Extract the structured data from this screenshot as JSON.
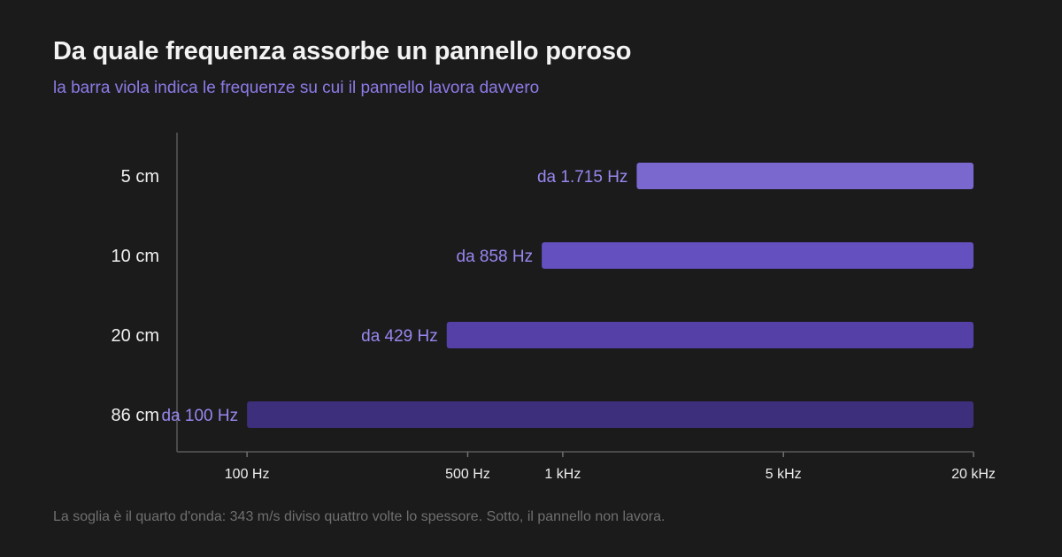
{
  "title": "Da quale frequenza assorbe un pannello poroso",
  "subtitle": "la barra viola indica le frequenze su cui il pannello lavora davvero",
  "footnote": "La soglia è il quarto d'onda: 343 m/s diviso quattro volte lo spessore. Sotto, il pannello non lavora.",
  "chart_data": {
    "type": "bar",
    "orientation": "horizontal",
    "x_scale": "log",
    "xlim": [
      60,
      20000
    ],
    "grid": false,
    "categories": [
      "5 cm",
      "10 cm",
      "20 cm",
      "86 cm"
    ],
    "ranges": [
      {
        "category": "5 cm",
        "start": 1715,
        "end": 20000,
        "label": "da 1.715 Hz",
        "color": "#7b68cf"
      },
      {
        "category": "10 cm",
        "start": 858,
        "end": 20000,
        "label": "da 858 Hz",
        "color": "#6550c0"
      },
      {
        "category": "20 cm",
        "start": 429,
        "end": 20000,
        "label": "da 429 Hz",
        "color": "#5540a8"
      },
      {
        "category": "86 cm",
        "start": 100,
        "end": 20000,
        "label": "da 100 Hz",
        "color": "#3e2f7d"
      }
    ],
    "x_ticks": [
      {
        "value": 100,
        "label": "100 Hz"
      },
      {
        "value": 500,
        "label": "500 Hz"
      },
      {
        "value": 1000,
        "label": "1 kHz"
      },
      {
        "value": 5000,
        "label": "5 kHz"
      },
      {
        "value": 20000,
        "label": "20 kHz"
      }
    ],
    "colors": {
      "axis": "#4a4a4a",
      "tick_mark": "#707070",
      "label": "#9a86f0"
    }
  }
}
